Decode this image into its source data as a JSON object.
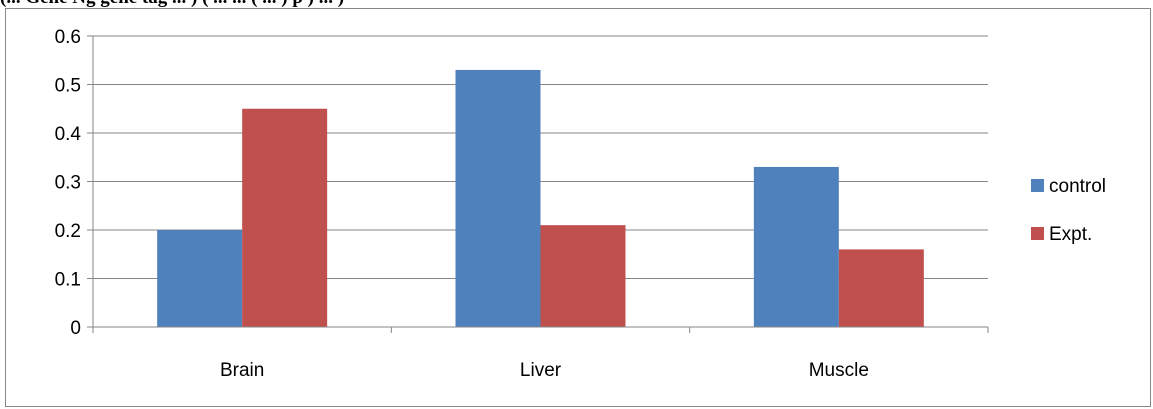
{
  "caption": {
    "text": "(... Gene Ng gene tag ... ) ( ... ... ( ... ) p ) ... )"
  },
  "chart_data": {
    "type": "bar",
    "categories": [
      "Brain",
      "Liver",
      "Muscle"
    ],
    "series": [
      {
        "name": "control",
        "values": [
          0.2,
          0.53,
          0.33
        ],
        "color": "#4F81BD"
      },
      {
        "name": "Expt.",
        "values": [
          0.45,
          0.21,
          0.16
        ],
        "color": "#C0504D"
      }
    ],
    "ylim": [
      0,
      0.6
    ],
    "yticks": [
      "0",
      "0.1",
      "0.2",
      "0.3",
      "0.4",
      "0.5",
      "0.6"
    ],
    "grid": true,
    "legend_position": "right"
  }
}
